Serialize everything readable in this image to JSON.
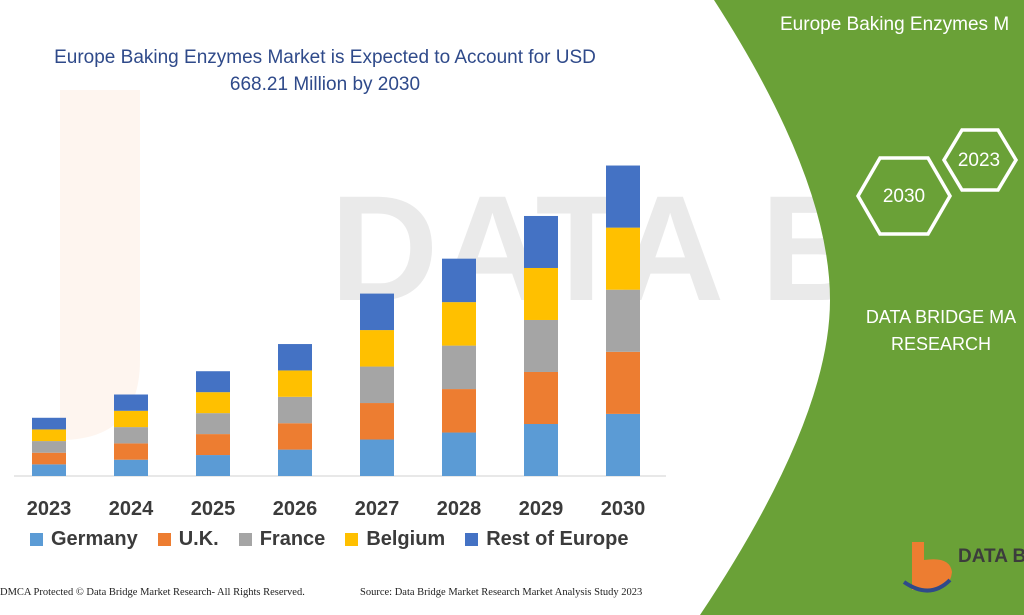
{
  "chart_data": {
    "type": "bar",
    "stacked": true,
    "title_lines": [
      "Europe Baking Enzymes Market is Expected to Account for USD",
      "668.21 Million by 2030"
    ],
    "categories": [
      "2023",
      "2024",
      "2025",
      "2026",
      "2027",
      "2028",
      "2029",
      "2030"
    ],
    "series": [
      {
        "name": "Germany",
        "color": "#5b9bd5",
        "values": [
          15,
          21,
          27,
          34,
          47,
          56,
          67,
          80
        ]
      },
      {
        "name": "U.K.",
        "color": "#ed7d31",
        "values": [
          15,
          21,
          27,
          34,
          47,
          56,
          67,
          80
        ]
      },
      {
        "name": "France",
        "color": "#a5a5a5",
        "values": [
          15,
          21,
          27,
          34,
          47,
          56,
          67,
          80
        ]
      },
      {
        "name": "Belgium",
        "color": "#ffc000",
        "values": [
          15,
          21,
          27,
          34,
          47,
          56,
          67,
          80
        ]
      },
      {
        "name": "Rest of Europe",
        "color": "#4472c4",
        "values": [
          15,
          21,
          27,
          34,
          47,
          56,
          67,
          80
        ]
      }
    ],
    "ylim": [
      0,
      420
    ],
    "grid": false,
    "legend_position": "bottom"
  },
  "side_panel": {
    "title": "Europe Baking Enzymes M",
    "badge_2023": "2023",
    "badge_2030": "2030",
    "brand_lines": [
      "DATA BRIDGE MA",
      "RESEARCH"
    ],
    "panel_color": "#6aa137"
  },
  "footer": {
    "left": "DMCA Protected © Data Bridge Market Research- All Rights Reserved.",
    "right": "Source: Data Bridge Market Research Market Analysis Study 2023"
  },
  "logo_text": "DATA B",
  "watermark_icon": "data-bridge-logo-icon"
}
